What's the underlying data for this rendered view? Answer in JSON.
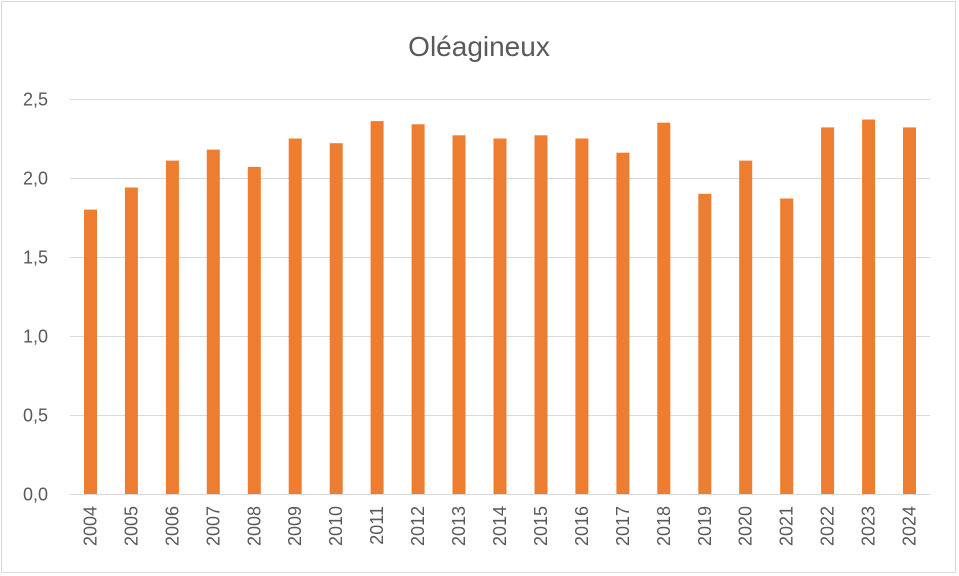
{
  "chart_data": {
    "type": "bar",
    "title": "Oléagineux",
    "xlabel": "",
    "ylabel": "",
    "categories": [
      "2004",
      "2005",
      "2006",
      "2007",
      "2008",
      "2009",
      "2010",
      "2011",
      "2012",
      "2013",
      "2014",
      "2015",
      "2016",
      "2017",
      "2018",
      "2019",
      "2020",
      "2021",
      "2022",
      "2023",
      "2024"
    ],
    "values": [
      1.8,
      1.94,
      2.11,
      2.18,
      2.07,
      2.25,
      2.22,
      2.36,
      2.34,
      2.27,
      2.25,
      2.27,
      2.25,
      2.16,
      2.35,
      1.9,
      2.11,
      1.87,
      2.32,
      2.37,
      2.32
    ],
    "ylim": [
      0,
      2.5
    ],
    "yticks": [
      "0,0",
      "0,5",
      "1,0",
      "1,5",
      "2,0",
      "2,5"
    ],
    "ytick_values": [
      0,
      0.5,
      1.0,
      1.5,
      2.0,
      2.5
    ],
    "grid": true,
    "legend": "none",
    "bar_color": "#ed7d31",
    "grid_color": "#d9d9d9",
    "text_color": "#595959"
  }
}
